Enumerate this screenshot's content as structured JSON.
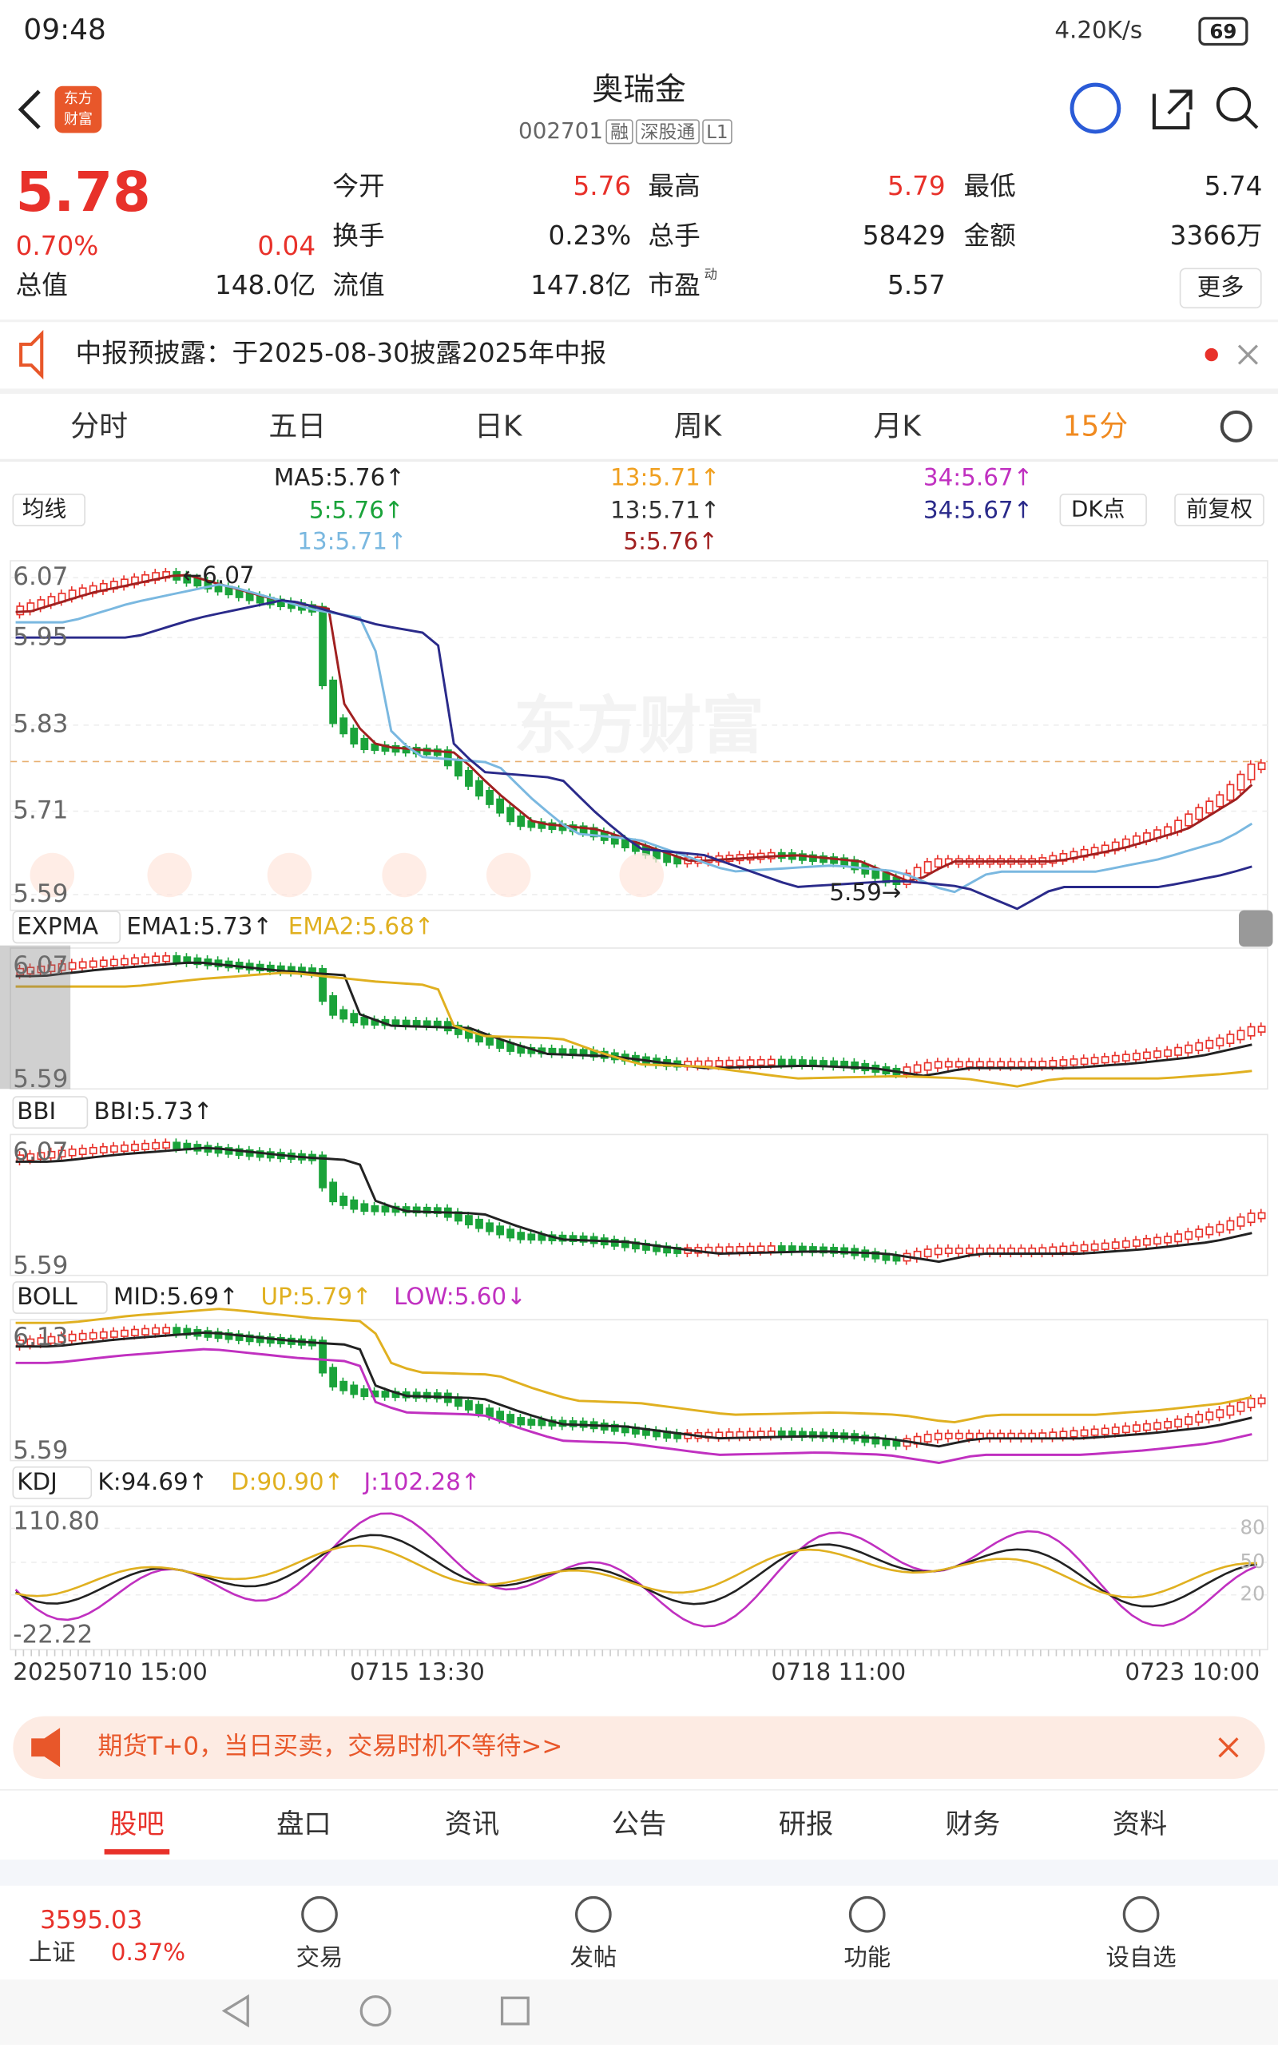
{
  "status_bar": {
    "time": "09:48",
    "speed": "4.20K/s",
    "battery": "69"
  },
  "header": {
    "logo": [
      "东方",
      "财富"
    ],
    "title": "奥瑞金",
    "code": "002701",
    "tags": [
      "融",
      "深股通",
      "L1"
    ]
  },
  "quote": {
    "price": "5.78",
    "change_pct": "0.70%",
    "change": "0.04",
    "fields": [
      {
        "label": "今开",
        "value": "5.76"
      },
      {
        "label": "最高",
        "value": "5.79"
      },
      {
        "label": "最低",
        "value": "5.74"
      },
      {
        "label": "换手",
        "value": "0.23%"
      },
      {
        "label": "总手",
        "value": "58429"
      },
      {
        "label": "金额",
        "value": "3366万"
      },
      {
        "label": "总值",
        "value": "148.0亿"
      },
      {
        "label": "流值",
        "value": "147.8亿"
      },
      {
        "label": "市盈",
        "value": "5.57"
      }
    ],
    "pe_mark": "动",
    "more": "更多"
  },
  "notice": "中报预披露：于2025-08-30披露2025年中报",
  "tabs": [
    "分时",
    "五日",
    "日K",
    "周K",
    "月K",
    "15分"
  ],
  "ma_bar": {
    "selector": "均线",
    "legend": [
      "MA5:5.76↑",
      "13:5.71↑",
      "34:5.67↑",
      "5:5.76↑",
      "13:5.71↑",
      "34:5.67↑",
      "13:5.71↑",
      "5:5.76↑"
    ],
    "buttons": [
      "DK点",
      "前复权"
    ]
  },
  "main_chart": {
    "watermark": "东方财富",
    "ticks": [
      "6.07",
      "5.95",
      "5.83",
      "5.71",
      "5.59"
    ],
    "high_label": "←6.07",
    "low_label": "5.59→"
  },
  "indicators": [
    {
      "name": "EXPMA",
      "values": [
        "EMA1:5.73↑",
        "EMA2:5.68↑"
      ],
      "ticks": [
        "6.07",
        "5.59"
      ]
    },
    {
      "name": "BBI",
      "values": [
        "BBI:5.73↑"
      ],
      "ticks": [
        "6.07",
        "5.59"
      ]
    },
    {
      "name": "BOLL",
      "values": [
        "MID:5.69↑",
        "UP:5.79↑",
        "LOW:5.60↓"
      ],
      "ticks": [
        "6.13",
        "5.59"
      ]
    },
    {
      "name": "KDJ",
      "values": [
        "K:94.69↑",
        "D:90.90↑",
        "J:102.28↑"
      ],
      "ticks": [
        "110.80",
        "-22.22",
        "80",
        "50",
        "20"
      ]
    }
  ],
  "time_axis": [
    "20250710 15:00",
    "0715 13:30",
    "0718 11:00",
    "0723 10:00"
  ],
  "ad": "期货T+0，当日买卖，交易时机不等待>>",
  "bottom_tabs": [
    "股吧",
    "盘口",
    "资讯",
    "公告",
    "研报",
    "财务",
    "资料"
  ],
  "nav": {
    "index_value": "3595.03",
    "index_name": "上证",
    "index_change": "0.37%",
    "items": [
      "交易",
      "发帖",
      "功能",
      "设自选"
    ]
  }
}
